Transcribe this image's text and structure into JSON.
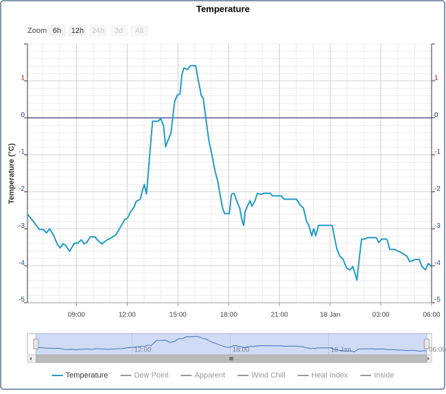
{
  "chart_data": {
    "type": "line",
    "title": "Temperature",
    "y_label": "Temperature (°C)",
    "range_selector": {
      "label": "Zoom",
      "buttons": [
        {
          "label": "6h",
          "enabled": true
        },
        {
          "label": "12h",
          "enabled": true
        },
        {
          "label": "24h",
          "enabled": false
        },
        {
          "label": "3d",
          "enabled": false
        },
        {
          "label": "All",
          "enabled": false
        }
      ]
    },
    "x": [
      6.12,
      6.81,
      7.05,
      7.22,
      7.42,
      7.66,
      7.86,
      8.03,
      8.19,
      8.35,
      8.59,
      8.88,
      9.08,
      9.28,
      9.45,
      9.61,
      9.81,
      10.09,
      10.3,
      10.5,
      10.78,
      11.07,
      11.31,
      11.47,
      11.84,
      12.04,
      12.16,
      12.41,
      12.53,
      12.77,
      12.89,
      13.01,
      13.14,
      13.26,
      13.42,
      13.5,
      13.82,
      13.99,
      14.15,
      14.27,
      14.43,
      14.59,
      14.8,
      14.96,
      15.12,
      15.24,
      15.36,
      15.57,
      15.73,
      16.05,
      16.14,
      16.26,
      16.38,
      16.5,
      16.66,
      16.82,
      16.99,
      17.19,
      17.35,
      17.51,
      17.64,
      17.76,
      18.04,
      18.16,
      18.32,
      18.49,
      18.65,
      18.81,
      18.89,
      18.97,
      19.09,
      19.26,
      19.38,
      19.54,
      19.7,
      19.91,
      20.07,
      20.47,
      20.59,
      21.12,
      21.28,
      21.69,
      22.01,
      22.22,
      22.42,
      22.62,
      22.74,
      22.91,
      23.03,
      23.15,
      23.31,
      23.51,
      24.12,
      24.28,
      24.41,
      24.57,
      24.77,
      24.97,
      25.18,
      25.34,
      25.46,
      25.58,
      25.74,
      25.86,
      26.03,
      26.23,
      26.39,
      26.72,
      26.88,
      27.04,
      27.36,
      27.53,
      27.81,
      28.14,
      28.54,
      28.7,
      29.03,
      29.27,
      29.43,
      29.64,
      29.8,
      30.0
    ],
    "series": [
      {
        "name": "Temperature",
        "color": "#1e9bc8",
        "values": [
          -2.61,
          -3.02,
          -3.02,
          -3.11,
          -3.0,
          -3.19,
          -3.41,
          -3.52,
          -3.41,
          -3.44,
          -3.61,
          -3.39,
          -3.39,
          -3.3,
          -3.41,
          -3.37,
          -3.22,
          -3.22,
          -3.33,
          -3.41,
          -3.31,
          -3.24,
          -3.17,
          -3.06,
          -2.76,
          -2.7,
          -2.57,
          -2.41,
          -2.26,
          -2.2,
          -1.98,
          -1.8,
          -2.06,
          -1.39,
          -0.5,
          -0.09,
          -0.09,
          -0.02,
          -0.22,
          -0.78,
          -0.59,
          -0.41,
          0.43,
          0.61,
          0.65,
          1.17,
          1.35,
          1.31,
          1.41,
          1.41,
          1.17,
          0.89,
          0.61,
          0.52,
          -0.04,
          -0.59,
          -0.96,
          -1.43,
          -1.7,
          -2.13,
          -2.44,
          -2.59,
          -2.59,
          -2.07,
          -2.04,
          -2.26,
          -2.44,
          -2.81,
          -2.91,
          -2.54,
          -2.41,
          -2.24,
          -2.39,
          -2.26,
          -2.04,
          -2.07,
          -2.04,
          -2.04,
          -2.11,
          -2.11,
          -2.2,
          -2.2,
          -2.2,
          -2.35,
          -2.44,
          -2.81,
          -2.91,
          -3.19,
          -3.0,
          -3.19,
          -2.91,
          -2.91,
          -2.91,
          -3.28,
          -3.56,
          -3.74,
          -3.83,
          -4.06,
          -4.11,
          -4.02,
          -4.2,
          -4.39,
          -3.74,
          -3.28,
          -3.28,
          -3.24,
          -3.24,
          -3.24,
          -3.37,
          -3.28,
          -3.28,
          -3.56,
          -3.56,
          -3.63,
          -3.74,
          -3.89,
          -3.83,
          -3.83,
          -4.02,
          -4.11,
          -3.94,
          -4.02
        ]
      }
    ],
    "legend_hidden": [
      "Dew Point",
      "Apparent",
      "Wind Chill",
      "Heat Index",
      "Inside"
    ],
    "xlim": [
      6.1,
      30
    ],
    "xticks": [
      {
        "value": 9,
        "label": "09:00"
      },
      {
        "value": 12,
        "label": "12:00"
      },
      {
        "value": 15,
        "label": "15:00"
      },
      {
        "value": 18,
        "label": "18:00"
      },
      {
        "value": 21,
        "label": "21:00"
      },
      {
        "value": 24,
        "label": "18 Jan"
      },
      {
        "value": 27,
        "label": "03:00"
      },
      {
        "value": 30,
        "label": "06:00"
      }
    ],
    "ylim": [
      -5,
      2
    ],
    "yticks": [
      -5,
      -4,
      -3,
      -2,
      -1,
      0,
      1
    ],
    "x_minor_interval": 1,
    "y_minor_interval": 0.2,
    "plot_line": 0,
    "grid": true,
    "navigator": {
      "xlim": [
        5.6,
        30.3
      ],
      "xticks": [
        {
          "value": 12,
          "label": "12:00"
        },
        {
          "value": 18,
          "label": "18:00"
        },
        {
          "value": 24,
          "label": "18 Jan"
        },
        {
          "value": 30,
          "label": "06:00"
        }
      ]
    }
  }
}
